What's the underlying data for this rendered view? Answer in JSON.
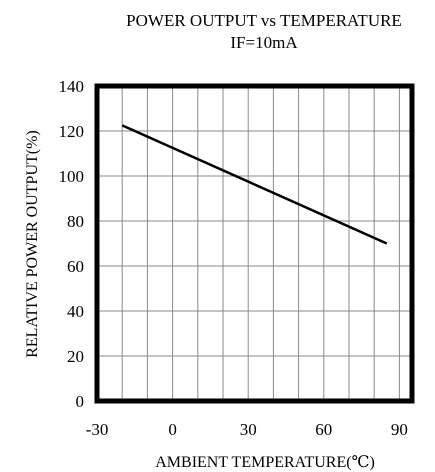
{
  "chart_data": {
    "type": "line",
    "title": "POWER OUTPUT vs TEMPERATURE",
    "subtitle": "IF=10mA",
    "xlabel": "AMBIENT TEMPERATURE(℃)",
    "ylabel": "RELATIVE POWER OUTPUT(%)",
    "xlim": [
      -30,
      95
    ],
    "ylim": [
      0,
      140
    ],
    "x_ticks": [
      -30,
      0,
      30,
      60,
      90
    ],
    "y_ticks": [
      0,
      20,
      40,
      60,
      80,
      100,
      120,
      140
    ],
    "x_tick_labels": [
      "-30",
      "0",
      "30",
      "60",
      "90"
    ],
    "y_tick_labels": [
      "0",
      "20",
      "40",
      "60",
      "80",
      "100",
      "120",
      "140"
    ],
    "x_grid_step": 10,
    "y_grid_step": 20,
    "grid": true,
    "series": [
      {
        "x": [
          -20,
          85
        ],
        "y": [
          122.5,
          70
        ],
        "color": "#000000"
      }
    ]
  }
}
